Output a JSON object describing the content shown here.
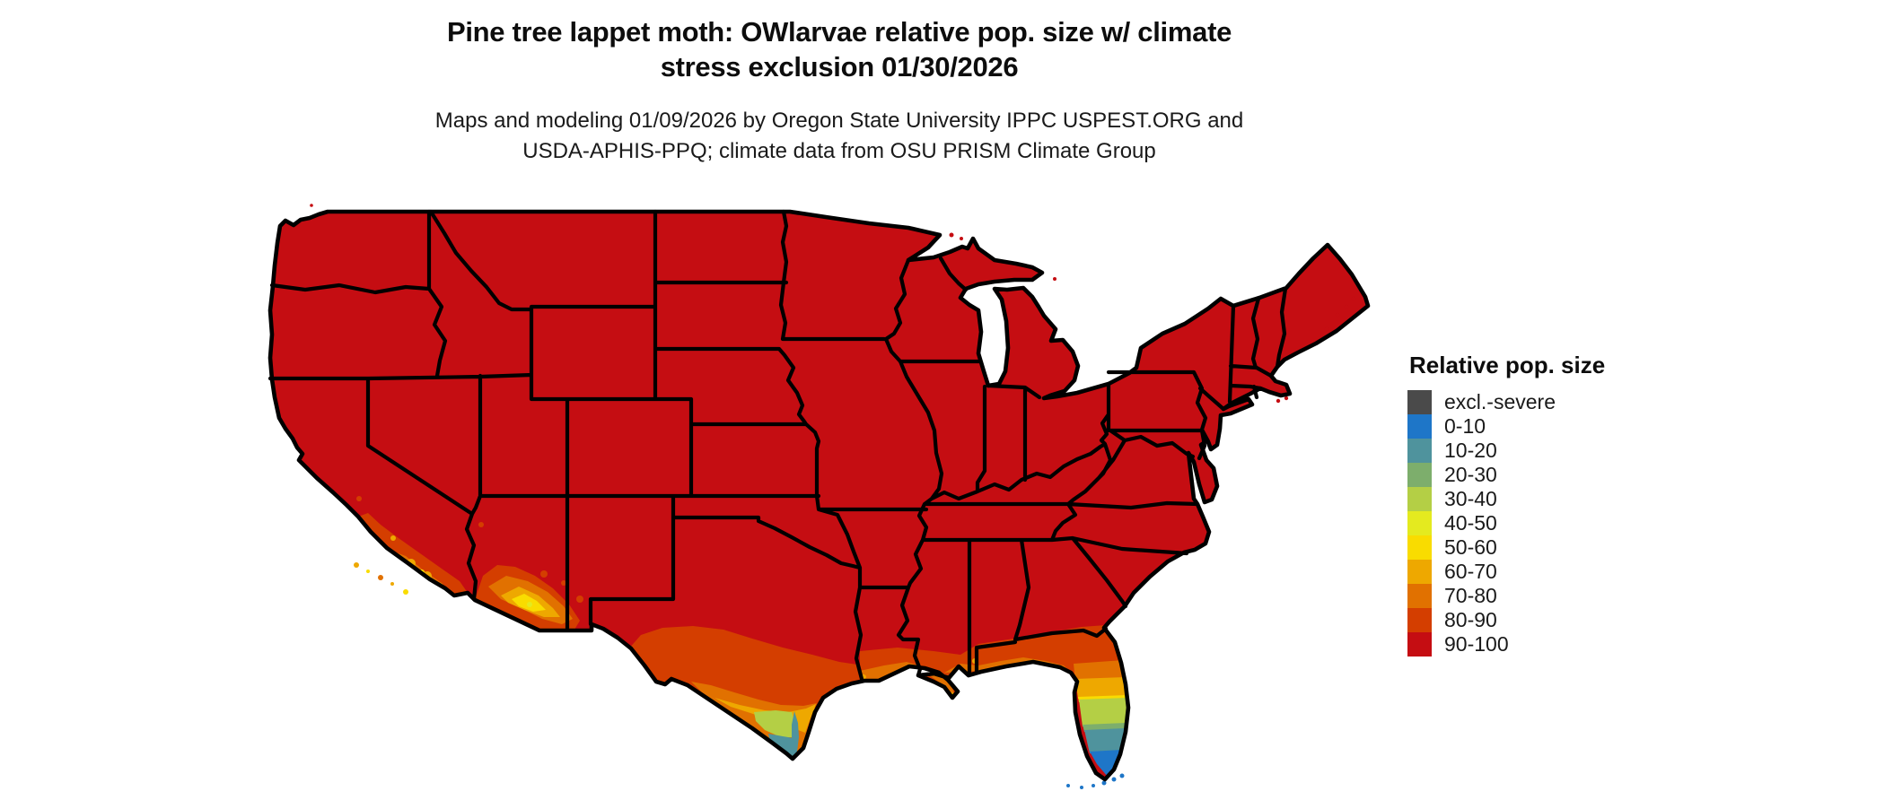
{
  "title": {
    "line1": "Pine tree lappet moth: OWlarvae relative pop. size w/ climate",
    "line2": "stress exclusion 01/30/2026"
  },
  "subtitle": {
    "line1": "Maps and modeling 01/09/2026 by Oregon State University IPPC USPEST.ORG and",
    "line2": "USDA-APHIS-PPQ; climate data from OSU PRISM Climate Group"
  },
  "legend": {
    "title": "Relative pop. size",
    "items": [
      {
        "key": "excl",
        "label": "excl.-severe",
        "color": "#4a4a4a"
      },
      {
        "key": "r0",
        "label": "0-10",
        "color": "#1e76c8"
      },
      {
        "key": "r10",
        "label": "10-20",
        "color": "#4f939d"
      },
      {
        "key": "r20",
        "label": "20-30",
        "color": "#7dae6c"
      },
      {
        "key": "r30",
        "label": "30-40",
        "color": "#b4cf45"
      },
      {
        "key": "r40",
        "label": "40-50",
        "color": "#e4ea1f"
      },
      {
        "key": "r50",
        "label": "50-60",
        "color": "#f9dc00"
      },
      {
        "key": "r60",
        "label": "60-70",
        "color": "#eea800"
      },
      {
        "key": "r70",
        "label": "70-80",
        "color": "#e17100"
      },
      {
        "key": "r80",
        "label": "80-90",
        "color": "#d43e00"
      },
      {
        "key": "r90",
        "label": "90-100",
        "color": "#c50d12"
      }
    ]
  },
  "map_data": {
    "type": "choropleth",
    "region": "Contiguous United States",
    "variable": "Relative pop. size",
    "dominant_class": "90-100",
    "border_color": "#000000",
    "background_color": "#ffffff",
    "gradient_regions": [
      {
        "area": "southern Florida peninsula",
        "classes": [
          "80-90",
          "70-80",
          "60-70",
          "50-60",
          "30-40",
          "20-30",
          "10-20",
          "0-10"
        ]
      },
      {
        "area": "southern Texas / Rio Grande valley",
        "classes": [
          "80-90",
          "70-80",
          "60-70",
          "30-40",
          "10-20"
        ]
      },
      {
        "area": "Gulf Coast (LA, MS, AL, FL panhandle)",
        "classes": [
          "80-90",
          "70-80",
          "60-70"
        ]
      },
      {
        "area": "southern California coast and Channel Islands",
        "classes": [
          "80-90",
          "70-80",
          "60-70",
          "50-60"
        ]
      },
      {
        "area": "southwestern Arizona",
        "classes": [
          "80-90",
          "70-80",
          "60-70",
          "50-60"
        ]
      },
      {
        "area": "Florida Keys",
        "classes": [
          "0-10"
        ]
      }
    ]
  }
}
